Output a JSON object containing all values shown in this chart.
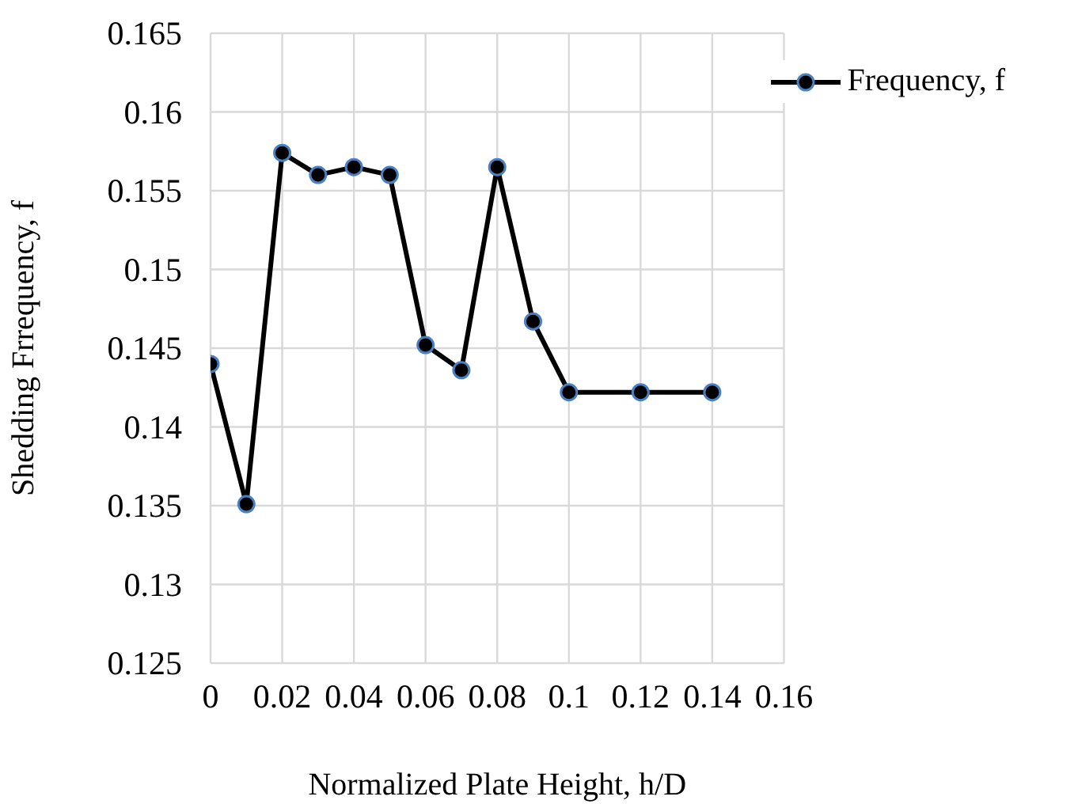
{
  "chart_data": {
    "type": "line",
    "xlabel": "Normalized Plate Height, h/D",
    "ylabel": "Shedding Frrequency, f",
    "x": [
      0,
      0.01,
      0.02,
      0.03,
      0.04,
      0.05,
      0.06,
      0.07,
      0.08,
      0.09,
      0.1,
      0.12,
      0.14
    ],
    "series": [
      {
        "name": "Frequency, f",
        "color": "#000000",
        "values": [
          0.144,
          0.1351,
          0.1574,
          0.156,
          0.1565,
          0.156,
          0.1452,
          0.1436,
          0.1565,
          0.1467,
          0.1422,
          0.1422,
          0.1422
        ]
      }
    ],
    "xlim": [
      0,
      0.16
    ],
    "xticks": [
      0,
      0.02,
      0.04,
      0.06,
      0.08,
      0.1,
      0.12,
      0.14,
      0.16
    ],
    "ylim": [
      0.125,
      0.165
    ],
    "yticks": [
      0.125,
      0.13,
      0.135,
      0.14,
      0.145,
      0.15,
      0.155,
      0.16,
      0.165
    ],
    "grid": true,
    "legend": "top right",
    "marker": "circle",
    "line_style": "solid"
  }
}
